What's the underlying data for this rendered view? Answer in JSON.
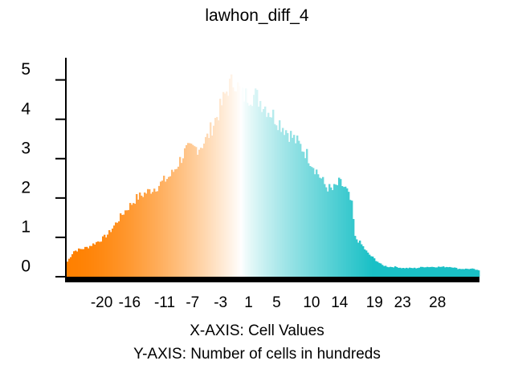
{
  "chart_data": {
    "type": "bar",
    "title": "lawhon_diff_4",
    "xlabel": "X-AXIS: Cell Values",
    "ylabel": "Y-AXIS: Number of cells in hundreds",
    "x_range": [
      -25,
      34
    ],
    "ylim": [
      0,
      5.4
    ],
    "x_ticks": [
      -20,
      -16,
      -11,
      -7,
      -3,
      1,
      5,
      10,
      14,
      19,
      23,
      28
    ],
    "y_ticks": [
      0,
      1,
      2,
      3,
      4,
      5
    ],
    "color_low": "#ff8000",
    "color_mid": "#ffffff",
    "color_high": "#1ac0c6",
    "profile_x": [
      -25,
      -24,
      -23,
      -22,
      -21,
      -20,
      -19,
      -18,
      -17,
      -16,
      -15,
      -14,
      -13,
      -12,
      -11,
      -10,
      -9,
      -8,
      -7,
      -6,
      -5,
      -4,
      -3,
      -2,
      -1,
      0,
      1,
      2,
      3,
      4,
      5,
      6,
      7,
      8,
      9,
      10,
      11,
      12,
      13,
      14,
      15,
      15.8,
      16.2,
      17,
      18,
      19,
      20,
      21,
      22,
      23,
      24,
      25,
      26,
      27,
      28,
      29,
      30,
      31,
      32,
      33,
      34
    ],
    "profile_y": [
      0.35,
      0.65,
      0.7,
      0.75,
      0.85,
      0.95,
      1.1,
      1.35,
      1.6,
      1.8,
      2.0,
      2.1,
      2.2,
      2.3,
      2.45,
      2.6,
      2.9,
      3.2,
      3.25,
      3.3,
      3.5,
      3.9,
      4.3,
      4.8,
      5.0,
      4.6,
      4.6,
      4.6,
      4.4,
      4.2,
      4.0,
      3.8,
      3.6,
      3.4,
      3.2,
      2.9,
      2.6,
      2.3,
      2.2,
      2.4,
      2.2,
      1.8,
      1.0,
      0.85,
      0.6,
      0.45,
      0.3,
      0.25,
      0.25,
      0.22,
      0.22,
      0.22,
      0.25,
      0.25,
      0.25,
      0.25,
      0.25,
      0.2,
      0.2,
      0.2,
      0.15
    ]
  }
}
